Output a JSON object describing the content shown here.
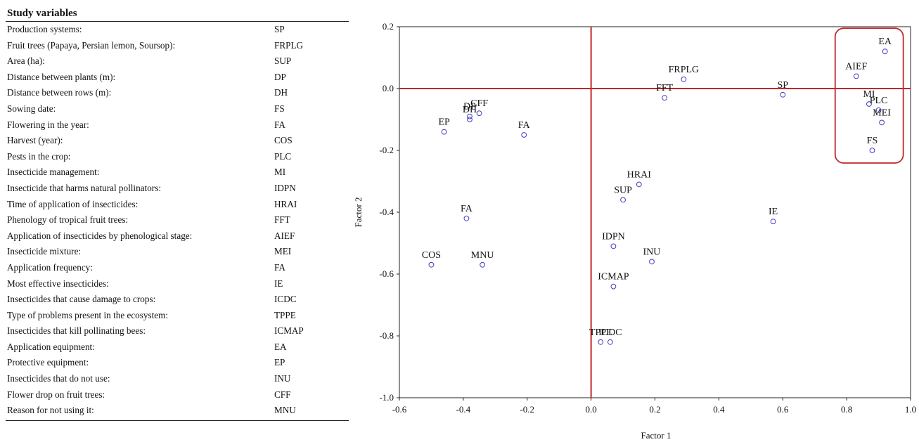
{
  "table": {
    "title": "Study variables",
    "rows": [
      {
        "desc": "Production systems:",
        "code": "SP"
      },
      {
        "desc": "Fruit trees (Papaya, Persian lemon, Soursop):",
        "code": "FRPLG"
      },
      {
        "desc": "Area (ha):",
        "code": "SUP"
      },
      {
        "desc": "Distance between plants (m):",
        "code": "DP"
      },
      {
        "desc": "Distance between rows (m):",
        "code": "DH"
      },
      {
        "desc": "Sowing date:",
        "code": "FS"
      },
      {
        "desc": "Flowering in the year:",
        "code": "FA"
      },
      {
        "desc": "Harvest (year):",
        "code": "COS"
      },
      {
        "desc": "Pests in the crop:",
        "code": "PLC"
      },
      {
        "desc": "Insecticide management:",
        "code": "MI"
      },
      {
        "desc": "Insecticide that harms natural pollinators:",
        "code": "IDPN"
      },
      {
        "desc": "Time of application of insecticides:",
        "code": "HRAI"
      },
      {
        "desc": "Phenology of tropical fruit trees:",
        "code": "FFT"
      },
      {
        "desc": "Application of insecticides by phenological stage:",
        "code": "AIEF"
      },
      {
        "desc": "Insecticide mixture:",
        "code": "MEI"
      },
      {
        "desc": "Application frequency:",
        "code": "FA"
      },
      {
        "desc": "Most effective insecticides:",
        "code": "IE"
      },
      {
        "desc": "Insecticides that cause damage to crops:",
        "code": "ICDC"
      },
      {
        "desc": "Type of problems present in the ecosystem:",
        "code": "TPPE"
      },
      {
        "desc": "Insecticides that kill pollinating bees:",
        "code": "ICMAP"
      },
      {
        "desc": "Application equipment:",
        "code": "EA"
      },
      {
        "desc": "Protective equipment:",
        "code": "EP"
      },
      {
        "desc": "Insecticides that do not use:",
        "code": "INU"
      },
      {
        "desc": "Flower drop on fruit trees:",
        "code": "CFF"
      },
      {
        "desc": "Reason for not using it:",
        "code": "MNU"
      }
    ]
  },
  "chart_data": {
    "type": "scatter",
    "xlabel": "Factor 1",
    "ylabel": "Factor 2",
    "xlim": [
      -0.6,
      1.0
    ],
    "ylim": [
      -1.0,
      0.2
    ],
    "xticks": [
      "-0.6",
      "-0.4",
      "-0.2",
      "0.0",
      "0.2",
      "0.4",
      "0.6",
      "0.8",
      "1.0"
    ],
    "yticks": [
      "0.2",
      "0.0",
      "-0.2",
      "-0.4",
      "-0.6",
      "-0.8",
      "-1.0"
    ],
    "reference_lines": {
      "x": 0.0,
      "y": 0.0,
      "color": "#c0282d"
    },
    "highlight_box": {
      "color": "#c0282d",
      "contains": [
        "EA",
        "AIEF",
        "MI",
        "PLC",
        "MEI",
        "FS"
      ]
    },
    "marker_color": "#3d3dbd",
    "points": [
      {
        "label": "EA",
        "x": 0.92,
        "y": 0.12
      },
      {
        "label": "AIEF",
        "x": 0.83,
        "y": 0.04
      },
      {
        "label": "MI",
        "x": 0.87,
        "y": -0.05
      },
      {
        "label": "PLC",
        "x": 0.9,
        "y": -0.07
      },
      {
        "label": "MEI",
        "x": 0.91,
        "y": -0.11
      },
      {
        "label": "FS",
        "x": 0.88,
        "y": -0.2
      },
      {
        "label": "FRPLG",
        "x": 0.29,
        "y": 0.03
      },
      {
        "label": "SP",
        "x": 0.6,
        "y": -0.02
      },
      {
        "label": "FFT",
        "x": 0.23,
        "y": -0.03
      },
      {
        "label": "CFF",
        "x": -0.35,
        "y": -0.08
      },
      {
        "label": "DP",
        "x": -0.38,
        "y": -0.09
      },
      {
        "label": "DH",
        "x": -0.38,
        "y": -0.1
      },
      {
        "label": "EP",
        "x": -0.46,
        "y": -0.14
      },
      {
        "label": "FA",
        "x": -0.21,
        "y": -0.15
      },
      {
        "label": "HRAI",
        "x": 0.15,
        "y": -0.31
      },
      {
        "label": "SUP",
        "x": 0.1,
        "y": -0.36
      },
      {
        "label": "FA",
        "x": -0.39,
        "y": -0.42
      },
      {
        "label": "IE",
        "x": 0.57,
        "y": -0.43
      },
      {
        "label": "IDPN",
        "x": 0.07,
        "y": -0.51
      },
      {
        "label": "INU",
        "x": 0.19,
        "y": -0.56
      },
      {
        "label": "COS",
        "x": -0.5,
        "y": -0.57
      },
      {
        "label": "MNU",
        "x": -0.34,
        "y": -0.57
      },
      {
        "label": "ICMAP",
        "x": 0.07,
        "y": -0.64
      },
      {
        "label": "TPPE",
        "x": 0.03,
        "y": -0.82
      },
      {
        "label": "ICDC",
        "x": 0.06,
        "y": -0.82
      }
    ]
  }
}
